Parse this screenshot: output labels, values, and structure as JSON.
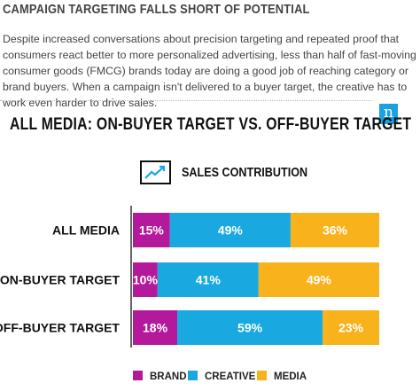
{
  "article": {
    "headline": "CAMPAIGN TARGETING FALLS SHORT OF POTENTIAL",
    "intro": "Despite increased conversations about precision targeting and repeated proof that consumers react better to more personalized advertising, less than half of fast-moving consumer goods (FMCG) brands today are doing a good job of reaching category or brand buyers. When a campaign isn't delivered to a buyer target, the creative has to work even harder to drive sales.",
    "logo_letter": "n",
    "logo_color": "#1aa1e1"
  },
  "chart_data": {
    "type": "bar",
    "orientation": "horizontal",
    "stacked": true,
    "title": "ALL MEDIA: ON-BUYER TARGET VS. OFF-BUYER TARGET",
    "subtitle": "SALES CONTRIBUTION",
    "subtitle_icon": "trend-chart-icon",
    "categories": [
      "ALL MEDIA",
      "ON-BUYER TARGET",
      "OFF-BUYER TARGET"
    ],
    "series": [
      {
        "name": "BRAND",
        "color": "#b5199b",
        "values": [
          15,
          10,
          18
        ],
        "labels": [
          "15%",
          "10%",
          "18%"
        ]
      },
      {
        "name": "CREATIVE",
        "color": "#1aa8e0",
        "values": [
          49,
          41,
          59
        ],
        "labels": [
          "49%",
          "41%",
          "59%"
        ]
      },
      {
        "name": "MEDIA",
        "color": "#f7b21c",
        "values": [
          36,
          49,
          23
        ],
        "labels": [
          "36%",
          "49%",
          "23%"
        ]
      }
    ],
    "xlim": [
      0,
      100
    ],
    "grid": false,
    "legend_position": "bottom"
  }
}
